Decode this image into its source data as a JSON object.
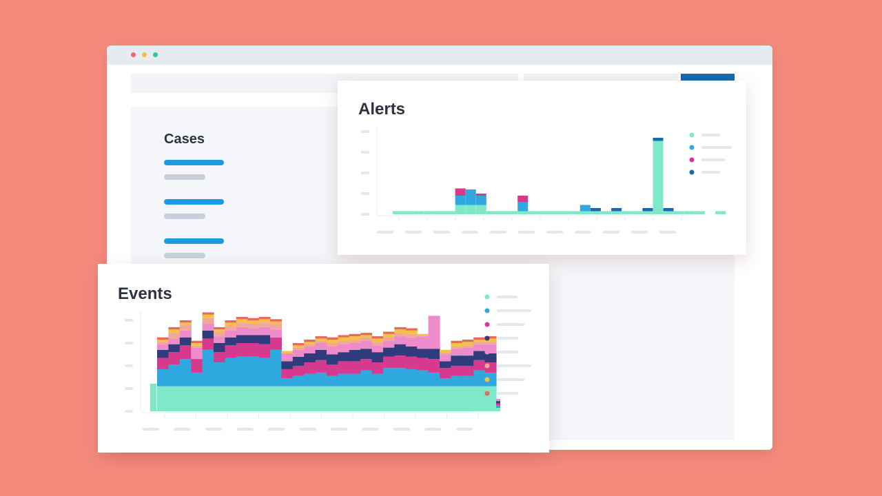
{
  "colors": {
    "background": "#F58A7D",
    "accent": "#1E9BDF",
    "accent_dark": "#1769B0"
  },
  "window": {
    "controls": [
      {
        "name": "close",
        "color": "#F0685E"
      },
      {
        "name": "minimize",
        "color": "#F5C140"
      },
      {
        "name": "maximize",
        "color": "#2BC6A2"
      }
    ]
  },
  "cases": {
    "title": "Cases",
    "items": [
      {
        "id": 1
      },
      {
        "id": 2
      },
      {
        "id": 3
      }
    ]
  },
  "alerts": {
    "title": "Alerts",
    "legend": [
      {
        "color": "#7FE8C8",
        "label": ""
      },
      {
        "color": "#2EA8DF",
        "label": ""
      },
      {
        "color": "#D63A8E",
        "label": ""
      },
      {
        "color": "#1769B0",
        "label": ""
      }
    ]
  },
  "events": {
    "title": "Events",
    "legend": [
      {
        "color": "#7FE8C8",
        "label": ""
      },
      {
        "color": "#2EA8DF",
        "label": ""
      },
      {
        "color": "#D63A8E",
        "label": ""
      },
      {
        "color": "#2F3B7A",
        "label": ""
      },
      {
        "color": "#EE8CCB",
        "label": ""
      },
      {
        "color": "#F2A79B",
        "label": ""
      },
      {
        "color": "#F5C140",
        "label": ""
      },
      {
        "color": "#E8685E",
        "label": ""
      }
    ]
  },
  "chart_data": [
    {
      "type": "bar",
      "title": "Alerts",
      "ylim": [
        0,
        4
      ],
      "grid": false,
      "legend": "right",
      "x": [
        1,
        2,
        3,
        4,
        5,
        6,
        7,
        8,
        9,
        10,
        11,
        12,
        13,
        14,
        15,
        16,
        17,
        18,
        19,
        20,
        21,
        22,
        23,
        24,
        25,
        26,
        27,
        28,
        29,
        30,
        31,
        32
      ],
      "series": [
        {
          "color": "#7FE8C8",
          "values": [
            0.15,
            0.15,
            0.15,
            0.15,
            0.15,
            0.15,
            0.45,
            0.45,
            0.45,
            0.15,
            0.15,
            0.15,
            0.15,
            0.15,
            0.15,
            0.15,
            0.15,
            0.15,
            0.15,
            0.15,
            0.15,
            0.15,
            0.15,
            0.15,
            0.15,
            3.55,
            0.15,
            0.15,
            0.15,
            0.15,
            0,
            0.15
          ]
        },
        {
          "color": "#2EA8DF",
          "values": [
            0,
            0,
            0,
            0,
            0,
            0,
            0.45,
            0.75,
            0.45,
            0,
            0,
            0,
            0.45,
            0,
            0,
            0,
            0,
            0,
            0.3,
            0,
            0,
            0,
            0,
            0,
            0,
            0,
            0,
            0,
            0,
            0,
            0,
            0
          ]
        },
        {
          "color": "#D63A8E",
          "values": [
            0,
            0,
            0,
            0,
            0,
            0,
            0.35,
            0,
            0.1,
            0,
            0,
            0,
            0.3,
            0,
            0,
            0,
            0,
            0,
            0,
            0,
            0,
            0,
            0,
            0,
            0,
            0,
            0,
            0,
            0,
            0,
            0,
            0
          ]
        },
        {
          "color": "#1769B0",
          "values": [
            0,
            0,
            0,
            0,
            0,
            0,
            0,
            0,
            0,
            0,
            0,
            0,
            0,
            0,
            0,
            0,
            0,
            0,
            0,
            0.15,
            0,
            0.15,
            0,
            0,
            0.15,
            0.15,
            0.15,
            0,
            0,
            0,
            0,
            0
          ]
        }
      ]
    },
    {
      "type": "area",
      "title": "Events",
      "ylim": [
        0,
        5
      ],
      "grid": false,
      "legend": "right",
      "x": [
        1,
        2,
        3,
        4,
        5,
        6,
        7,
        8,
        9,
        10,
        11,
        12,
        13,
        14,
        15,
        16,
        17,
        18,
        19,
        20,
        21,
        22,
        23,
        24,
        25,
        26,
        27,
        28,
        29,
        30,
        31
      ],
      "series": [
        {
          "color": "#7FE8C8",
          "values": [
            1.1,
            1.1,
            1.1,
            1.1,
            1.1,
            1.1,
            1.1,
            1.1,
            1.1,
            1.1,
            1.1,
            1.1,
            1.1,
            1.1,
            1.1,
            1.1,
            1.1,
            1.1,
            1.1,
            1.1,
            1.1,
            1.1,
            1.1,
            1.1,
            1.1,
            1.1,
            1.1,
            1.1,
            1.1,
            1.1,
            0.15
          ]
        },
        {
          "color": "#2EA8DF",
          "values": [
            0.75,
            0.95,
            1.2,
            0.6,
            1.6,
            1.05,
            1.25,
            1.3,
            1.3,
            1.25,
            1.6,
            0.35,
            0.45,
            0.55,
            0.6,
            0.45,
            0.55,
            0.55,
            0.7,
            0.55,
            0.8,
            0.8,
            0.75,
            0.7,
            0.6,
            0.35,
            0.45,
            0.45,
            0.7,
            0.6,
            0.1
          ]
        },
        {
          "color": "#D63A8E",
          "values": [
            0.5,
            0.55,
            0.6,
            0.6,
            0.5,
            0.45,
            0.55,
            0.6,
            0.6,
            0.6,
            0.55,
            0.4,
            0.45,
            0.5,
            0.55,
            0.5,
            0.55,
            0.55,
            0.5,
            0.5,
            0.5,
            0.55,
            0.55,
            0.55,
            0.6,
            0.45,
            0.45,
            0.45,
            0.45,
            0.45,
            0.1
          ]
        },
        {
          "color": "#2F3B7A",
          "values": [
            0.35,
            0.35,
            0.35,
            0,
            0.35,
            0.4,
            0.35,
            0.35,
            0.35,
            0.4,
            0,
            0.35,
            0.4,
            0.4,
            0.45,
            0.45,
            0.4,
            0.5,
            0.45,
            0.45,
            0.4,
            0.5,
            0.45,
            0.4,
            0.45,
            0.3,
            0.45,
            0.45,
            0.4,
            0.4,
            0.1
          ]
        },
        {
          "color": "#EE8CCB",
          "values": [
            0.25,
            0.25,
            0.3,
            0.5,
            0.3,
            0.3,
            0.3,
            0.35,
            0.3,
            0.35,
            0.35,
            0.35,
            0.3,
            0.3,
            0.3,
            0.35,
            0.35,
            0.3,
            0.35,
            0.3,
            0.3,
            0.35,
            0.4,
            0.55,
            1.45,
            0.3,
            0.3,
            0.35,
            0.3,
            0.4,
            0.1
          ]
        },
        {
          "color": "#F2A79B",
          "values": [
            0.1,
            0.25,
            0.25,
            0.1,
            0.25,
            0.2,
            0.2,
            0.2,
            0.2,
            0.2,
            0.25,
            0,
            0.1,
            0.1,
            0.1,
            0.15,
            0.15,
            0.15,
            0.15,
            0.15,
            0.15,
            0.15,
            0.15,
            0,
            0,
            0.1,
            0.1,
            0.1,
            0.1,
            0.1,
            0
          ]
        },
        {
          "color": "#F5C140",
          "values": [
            0.1,
            0.15,
            0.1,
            0.1,
            0.15,
            0.1,
            0.15,
            0.15,
            0.15,
            0.15,
            0.1,
            0.1,
            0.1,
            0.1,
            0.1,
            0.15,
            0.15,
            0.15,
            0.1,
            0.15,
            0.15,
            0.15,
            0.15,
            0.1,
            0,
            0.1,
            0.15,
            0.15,
            0.1,
            0.15,
            0
          ]
        },
        {
          "color": "#E8685E",
          "values": [
            0.1,
            0.1,
            0.1,
            0.1,
            0.1,
            0.1,
            0.1,
            0.1,
            0.1,
            0.1,
            0.1,
            0,
            0.1,
            0.1,
            0.1,
            0.1,
            0.1,
            0.1,
            0.1,
            0.1,
            0.1,
            0.1,
            0.1,
            0,
            0,
            0,
            0.1,
            0.1,
            0.1,
            0.1,
            0
          ]
        }
      ]
    }
  ]
}
